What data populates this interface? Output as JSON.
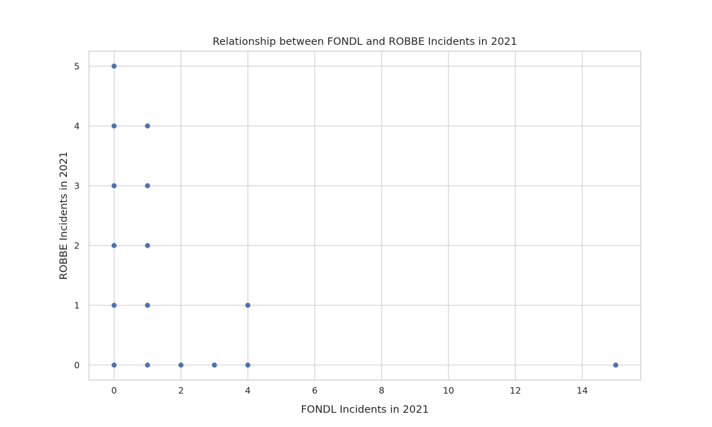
{
  "chart_data": {
    "type": "scatter",
    "title": "Relationship between FONDL and ROBBE Incidents in 2021",
    "xlabel": "FONDL Incidents in 2021",
    "ylabel": "ROBBE Incidents in 2021",
    "xlim": [
      -0.75,
      15.75
    ],
    "ylim": [
      -0.25,
      5.25
    ],
    "xticks": [
      0,
      2,
      4,
      6,
      8,
      10,
      12,
      14
    ],
    "yticks": [
      0,
      1,
      2,
      3,
      4,
      5
    ],
    "grid": true,
    "point_color": "#4c72b0",
    "points": [
      {
        "x": 0,
        "y": 5
      },
      {
        "x": 0,
        "y": 4
      },
      {
        "x": 0,
        "y": 3
      },
      {
        "x": 0,
        "y": 2
      },
      {
        "x": 0,
        "y": 1
      },
      {
        "x": 0,
        "y": 0
      },
      {
        "x": 1,
        "y": 4
      },
      {
        "x": 1,
        "y": 3
      },
      {
        "x": 1,
        "y": 2
      },
      {
        "x": 1,
        "y": 1
      },
      {
        "x": 1,
        "y": 0
      },
      {
        "x": 2,
        "y": 0
      },
      {
        "x": 3,
        "y": 0
      },
      {
        "x": 4,
        "y": 1
      },
      {
        "x": 4,
        "y": 0
      },
      {
        "x": 15,
        "y": 0
      }
    ]
  }
}
